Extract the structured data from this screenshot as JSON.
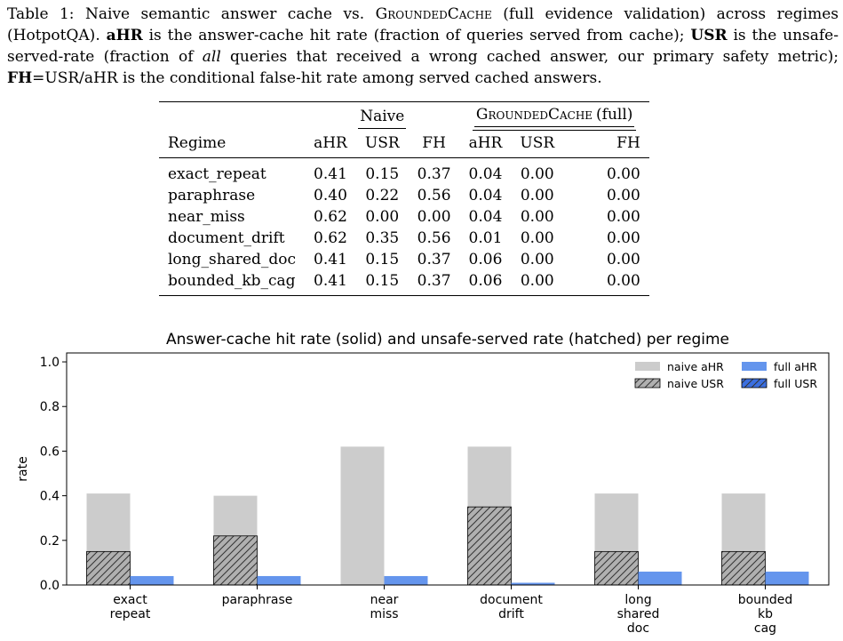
{
  "caption": {
    "prefix": "Table 1: Naive semantic answer cache vs. ",
    "system": "GroundedCache",
    "s1": " (full evidence validation) across regimes (HotpotQA). ",
    "ahr": "aHR",
    "s2": " is the answer-cache hit rate (fraction of queries served from cache); ",
    "usr": "USR",
    "s3": " is the unsafe-served-rate (fraction of ",
    "all": "all",
    "s4": " queries that received a wrong cached answer, our primary safety metric); ",
    "fh": "FH",
    "s5": "=USR/aHR is the conditional false-hit rate among served cached answers."
  },
  "table": {
    "group_naive": "Naive",
    "group_full_name": "GroundedCache",
    "group_full_suffix": " (full)",
    "headers": [
      "Regime",
      "aHR",
      "USR",
      "FH",
      "aHR",
      "USR",
      "FH"
    ],
    "rows": [
      {
        "regime": "exact_repeat",
        "cells": [
          "0.41",
          "0.15",
          "0.37",
          "0.04",
          "0.00",
          "0.00"
        ]
      },
      {
        "regime": "paraphrase",
        "cells": [
          "0.40",
          "0.22",
          "0.56",
          "0.04",
          "0.00",
          "0.00"
        ]
      },
      {
        "regime": "near_miss",
        "cells": [
          "0.62",
          "0.00",
          "0.00",
          "0.04",
          "0.00",
          "0.00"
        ]
      },
      {
        "regime": "document_drift",
        "cells": [
          "0.62",
          "0.35",
          "0.56",
          "0.01",
          "0.00",
          "0.00"
        ]
      },
      {
        "regime": "long_shared_doc",
        "cells": [
          "0.41",
          "0.15",
          "0.37",
          "0.06",
          "0.00",
          "0.00"
        ]
      },
      {
        "regime": "bounded_kb_cag",
        "cells": [
          "0.41",
          "0.15",
          "0.37",
          "0.06",
          "0.00",
          "0.00"
        ]
      }
    ]
  },
  "chart_data": {
    "type": "bar",
    "title": "Answer-cache hit rate (solid) and unsafe-served rate (hatched) per regime",
    "xlabel": "",
    "ylabel": "rate",
    "ylim": [
      0,
      1.04
    ],
    "yticks": [
      "0.0",
      "0.2",
      "0.4",
      "0.6",
      "0.8",
      "1.0"
    ],
    "categories": [
      [
        "exact",
        "repeat"
      ],
      [
        "paraphrase"
      ],
      [
        "near",
        "miss"
      ],
      [
        "document",
        "drift"
      ],
      [
        "long",
        "shared",
        "doc"
      ],
      [
        "bounded",
        "kb",
        "cag"
      ]
    ],
    "series": [
      {
        "name": "naive aHR",
        "values": [
          0.41,
          0.4,
          0.62,
          0.62,
          0.41,
          0.41
        ],
        "color": "#cccccc"
      },
      {
        "name": "naive USR",
        "values": [
          0.15,
          0.22,
          0.0,
          0.35,
          0.15,
          0.15
        ],
        "color": "#b0b0b0",
        "hatched": true
      },
      {
        "name": "full aHR",
        "values": [
          0.04,
          0.04,
          0.04,
          0.01,
          0.06,
          0.06
        ],
        "color": "#6495ed"
      },
      {
        "name": "full USR",
        "values": [
          0.0,
          0.0,
          0.0,
          0.0,
          0.0,
          0.0
        ],
        "color": "#3b6fe0",
        "hatched": true
      }
    ],
    "legend": "top-right",
    "grid": false
  }
}
